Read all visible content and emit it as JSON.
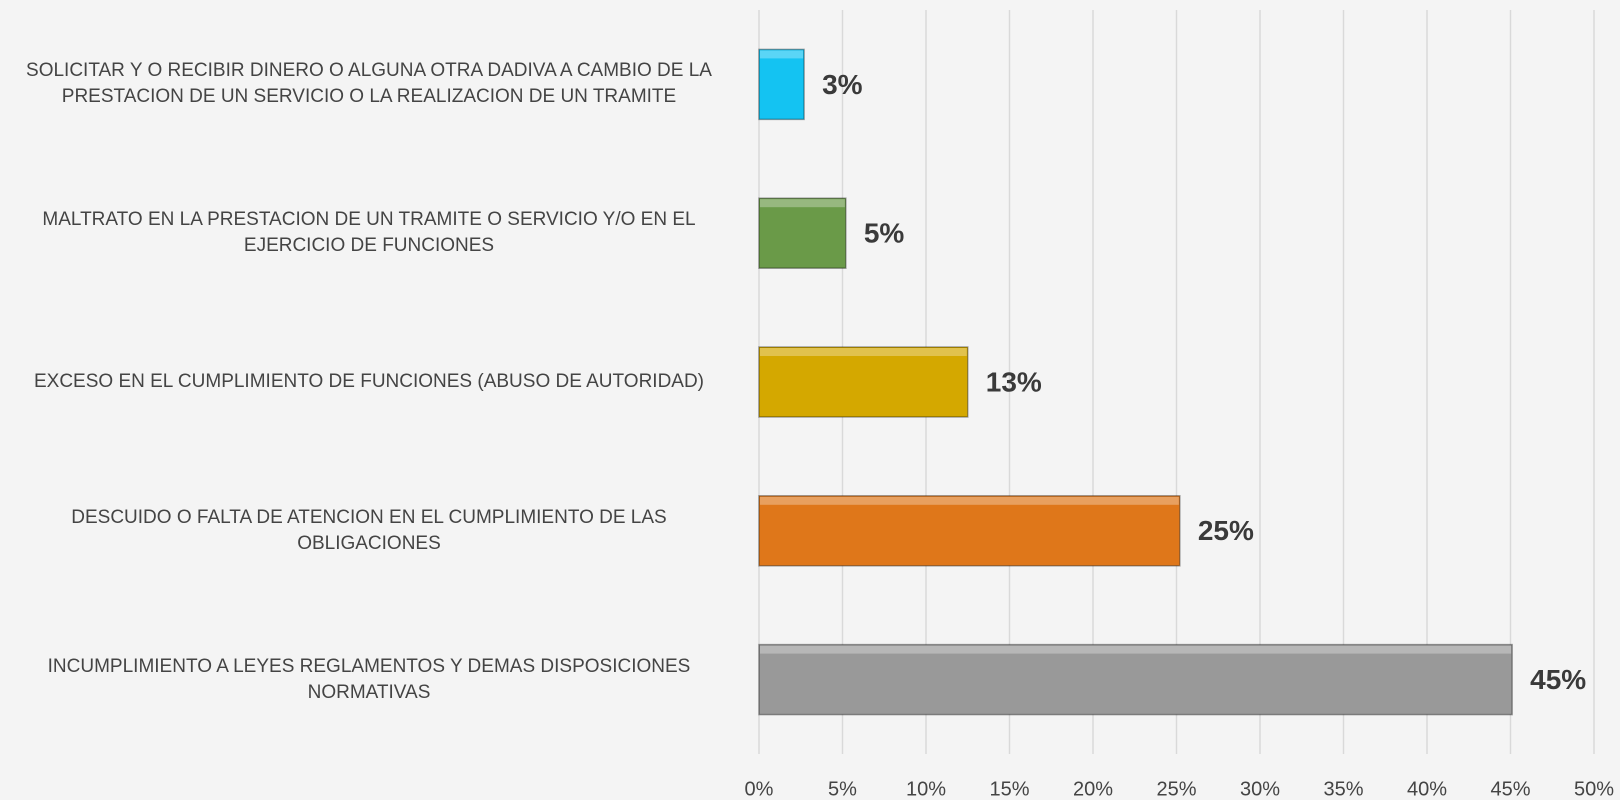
{
  "chart_data": {
    "type": "hbar",
    "categories": [
      "SOLICITAR Y O RECIBIR DINERO O ALGUNA OTRA DADIVA A CAMBIO DE LA PRESTACION DE UN SERVICIO O LA REALIZACION DE UN TRAMITE",
      "MALTRATO EN LA PRESTACION DE UN TRAMITE O SERVICIO Y/O EN EL EJERCICIO DE FUNCIONES",
      "EXCESO EN EL CUMPLIMIENTO DE FUNCIONES (ABUSO DE AUTORIDAD)",
      "DESCUIDO O FALTA DE ATENCION EN EL CUMPLIMIENTO DE LAS OBLIGACIONES",
      "INCUMPLIMIENTO A LEYES REGLAMENTOS Y DEMAS DISPOSICIONES NORMATIVAS"
    ],
    "values": [
      2.7,
      5.2,
      12.5,
      25.2,
      45.1
    ],
    "value_labels": [
      "3%",
      "5%",
      "13%",
      "25%",
      "45%"
    ],
    "colors": [
      "#14c3f2",
      "#6a9a48",
      "#d4a800",
      "#df771a",
      "#999999"
    ],
    "xlim": [
      0,
      50
    ],
    "xticks": [
      {
        "value": 0,
        "label": "0%"
      },
      {
        "value": 5,
        "label": "5%"
      },
      {
        "value": 10,
        "label": "10%"
      },
      {
        "value": 15,
        "label": "15%"
      },
      {
        "value": 20,
        "label": "20%"
      },
      {
        "value": 25,
        "label": "25%"
      },
      {
        "value": 30,
        "label": "30%"
      },
      {
        "value": 35,
        "label": "35%"
      },
      {
        "value": 40,
        "label": "40%"
      },
      {
        "value": 45,
        "label": "45%"
      },
      {
        "value": 50,
        "label": "50%"
      }
    ],
    "grid": true
  }
}
